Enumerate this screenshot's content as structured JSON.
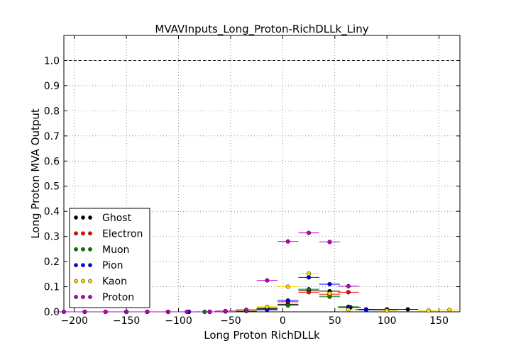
{
  "chart_data": {
    "type": "scatter",
    "title": "MVAVInputs_Long_Proton-RichDLLk_Liny",
    "xlabel": "Long Proton RichDLLk",
    "ylabel": "Long Proton MVA Output",
    "xlim": [
      -210,
      170
    ],
    "ylim": [
      0,
      1.1
    ],
    "xticks": [
      -200,
      -150,
      -100,
      -50,
      0,
      50,
      100,
      150
    ],
    "yticks": [
      0.0,
      0.1,
      0.2,
      0.3,
      0.4,
      0.5,
      0.6,
      0.7,
      0.8,
      0.9,
      1.0
    ],
    "grid": true,
    "reference_line": 1.0,
    "legend_position": "lower-left",
    "bin_half_width": 10,
    "series": [
      {
        "name": "Ghost",
        "color": "#000000",
        "points": [
          [
            -150,
            0
          ],
          [
            -130,
            0
          ],
          [
            -110,
            0
          ],
          [
            -90,
            0
          ],
          [
            -70,
            0
          ],
          [
            -55,
            0.002
          ],
          [
            -35,
            0.003
          ],
          [
            -15,
            0.012
          ],
          [
            5,
            0.03
          ],
          [
            25,
            0.085
          ],
          [
            45,
            0.082
          ],
          [
            65,
            0.018
          ],
          [
            80,
            0.01
          ],
          [
            100,
            0.01
          ],
          [
            120,
            0.01
          ]
        ]
      },
      {
        "name": "Electron",
        "color": "#ff0000",
        "points": [
          [
            -70,
            0
          ],
          [
            -55,
            0.002
          ],
          [
            -35,
            0.004
          ],
          [
            -15,
            0.01
          ],
          [
            5,
            0.04
          ],
          [
            25,
            0.078
          ],
          [
            45,
            0.068
          ],
          [
            63,
            0.078
          ]
        ]
      },
      {
        "name": "Muon",
        "color": "#008000",
        "points": [
          [
            -75,
            0
          ],
          [
            -55,
            0.002
          ],
          [
            -35,
            0.004
          ],
          [
            -15,
            0.015
          ],
          [
            5,
            0.025
          ],
          [
            25,
            0.09
          ],
          [
            45,
            0.06
          ],
          [
            63,
            0.02
          ],
          [
            80,
            0.008
          ]
        ]
      },
      {
        "name": "Pion",
        "color": "#0000ff",
        "points": [
          [
            -190,
            0
          ],
          [
            -170,
            0
          ],
          [
            -150,
            0
          ],
          [
            -130,
            0
          ],
          [
            -110,
            0
          ],
          [
            -90,
            0
          ],
          [
            -70,
            0
          ],
          [
            -55,
            0.002
          ],
          [
            -35,
            0.005
          ],
          [
            -15,
            0.008
          ],
          [
            5,
            0.045
          ],
          [
            25,
            0.137
          ],
          [
            45,
            0.11
          ],
          [
            63,
            0.018
          ],
          [
            80,
            0.008
          ],
          [
            100,
            0.005
          ]
        ]
      },
      {
        "name": "Kaon",
        "color": "#ffd700",
        "points": [
          [
            -55,
            0.002
          ],
          [
            -35,
            0.005
          ],
          [
            -15,
            0.02
          ],
          [
            5,
            0.1
          ],
          [
            25,
            0.152
          ],
          [
            45,
            0.073
          ],
          [
            63,
            0.008
          ],
          [
            100,
            0.005
          ],
          [
            140,
            0.005
          ],
          [
            160,
            0.008
          ]
        ]
      },
      {
        "name": "Proton",
        "color": "#bf00bf",
        "points": [
          [
            -210,
            0
          ],
          [
            -190,
            0
          ],
          [
            -170,
            0
          ],
          [
            -150,
            0
          ],
          [
            -130,
            0
          ],
          [
            -110,
            0
          ],
          [
            -92,
            0
          ],
          [
            -70,
            0
          ],
          [
            -55,
            0.003
          ],
          [
            -35,
            0.008
          ],
          [
            -15,
            0.125
          ],
          [
            5,
            0.28
          ],
          [
            25,
            0.314
          ],
          [
            45,
            0.278
          ],
          [
            63,
            0.102
          ]
        ]
      }
    ]
  }
}
